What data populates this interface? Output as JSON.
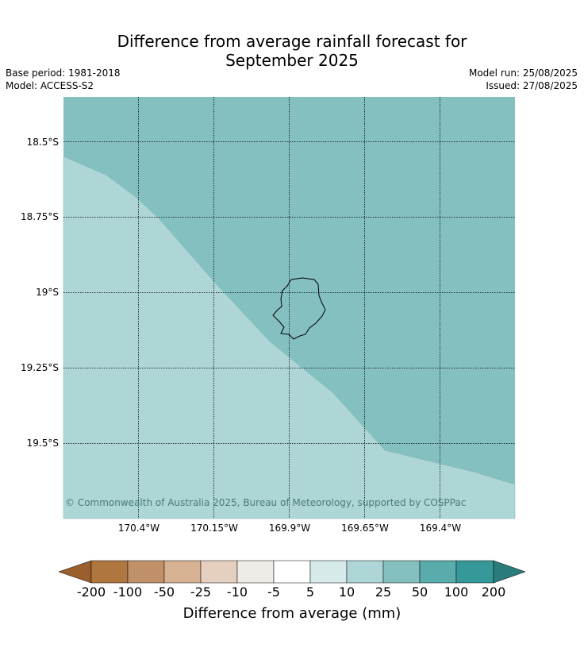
{
  "title": {
    "line1": "Difference from average rainfall forecast for",
    "line2": "September 2025"
  },
  "meta": {
    "base_period": "Base period: 1981-2018",
    "model": "Model: ACCESS-S2",
    "model_run": "Model run: 25/08/2025",
    "issued": "Issued: 27/08/2025"
  },
  "map": {
    "latitude_labels": [
      "18.5°S",
      "18.75°S",
      "19°S",
      "19.25°S",
      "19.5°S"
    ],
    "longitude_labels": [
      "170.4°W",
      "170.15°W",
      "169.9°W",
      "169.65°W",
      "169.4°W"
    ],
    "copyright": "© Commonwealth of Australia 2025, Bureau of Meteorology, supported by COSPPac",
    "regions": [
      {
        "category": "50 to 100",
        "color": "#85c0c0"
      },
      {
        "category": "25 to 50",
        "color": "#aed6d6"
      }
    ],
    "colors": {
      "ocean_50_100": "#85c0c0",
      "ocean_25_50": "#aed6d6",
      "coastline": "#000000",
      "gridline": "#000000"
    }
  },
  "colorbar": {
    "label": "Difference from average (mm)",
    "ticks": [
      "-200",
      "-100",
      "-50",
      "-25",
      "-10",
      "-5",
      "5",
      "10",
      "25",
      "50",
      "100",
      "200"
    ],
    "colors": [
      "#9b5f2d",
      "#b0763f",
      "#c09068",
      "#d6b293",
      "#e5d0bf",
      "#efebe7",
      "#ffffff",
      "#d6eaea",
      "#aed6d6",
      "#85c0c0",
      "#5aabab",
      "#359999",
      "#2a7b7b"
    ]
  }
}
